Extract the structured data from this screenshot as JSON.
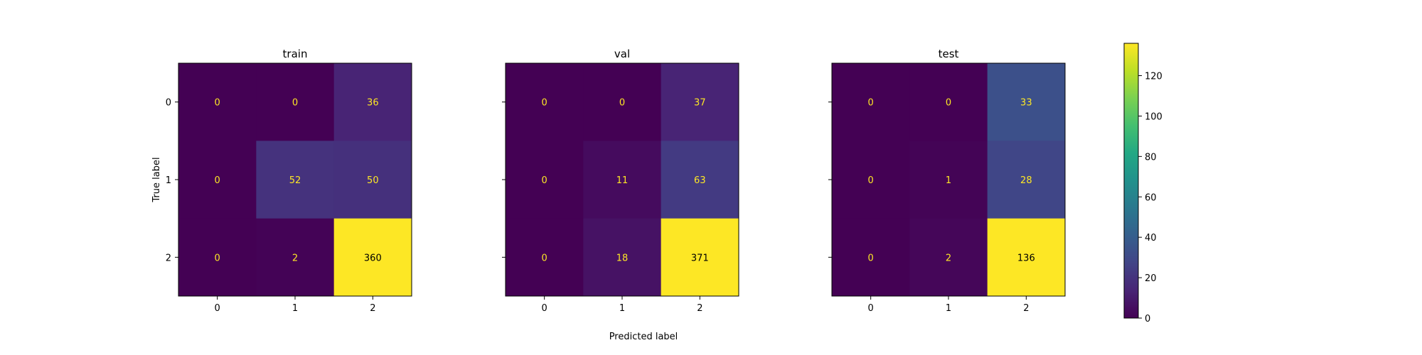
{
  "chart_data": {
    "type": "heatmap",
    "colormap": "viridis",
    "xlabel": "Predicted label",
    "ylabel": "True label",
    "text_color_low": "#fde725",
    "text_color_high": "#000000",
    "panels": [
      {
        "title": "train",
        "x_categories": [
          "0",
          "1",
          "2"
        ],
        "y_categories": [
          "0",
          "1",
          "2"
        ],
        "matrix": [
          [
            0,
            0,
            36
          ],
          [
            0,
            52,
            50
          ],
          [
            0,
            2,
            360
          ]
        ],
        "show_y_tick_labels": true
      },
      {
        "title": "val",
        "x_categories": [
          "0",
          "1",
          "2"
        ],
        "y_categories": [
          "0",
          "1",
          "2"
        ],
        "matrix": [
          [
            0,
            0,
            37
          ],
          [
            0,
            11,
            63
          ],
          [
            0,
            18,
            371
          ]
        ],
        "show_y_tick_labels": false
      },
      {
        "title": "test",
        "x_categories": [
          "0",
          "1",
          "2"
        ],
        "y_categories": [
          "0",
          "1",
          "2"
        ],
        "matrix": [
          [
            0,
            0,
            33
          ],
          [
            0,
            1,
            28
          ],
          [
            0,
            2,
            136
          ]
        ],
        "show_y_tick_labels": false
      }
    ],
    "colorbar": {
      "range": [
        0,
        136
      ],
      "ticks": [
        0,
        20,
        40,
        60,
        80,
        100,
        120
      ]
    }
  }
}
